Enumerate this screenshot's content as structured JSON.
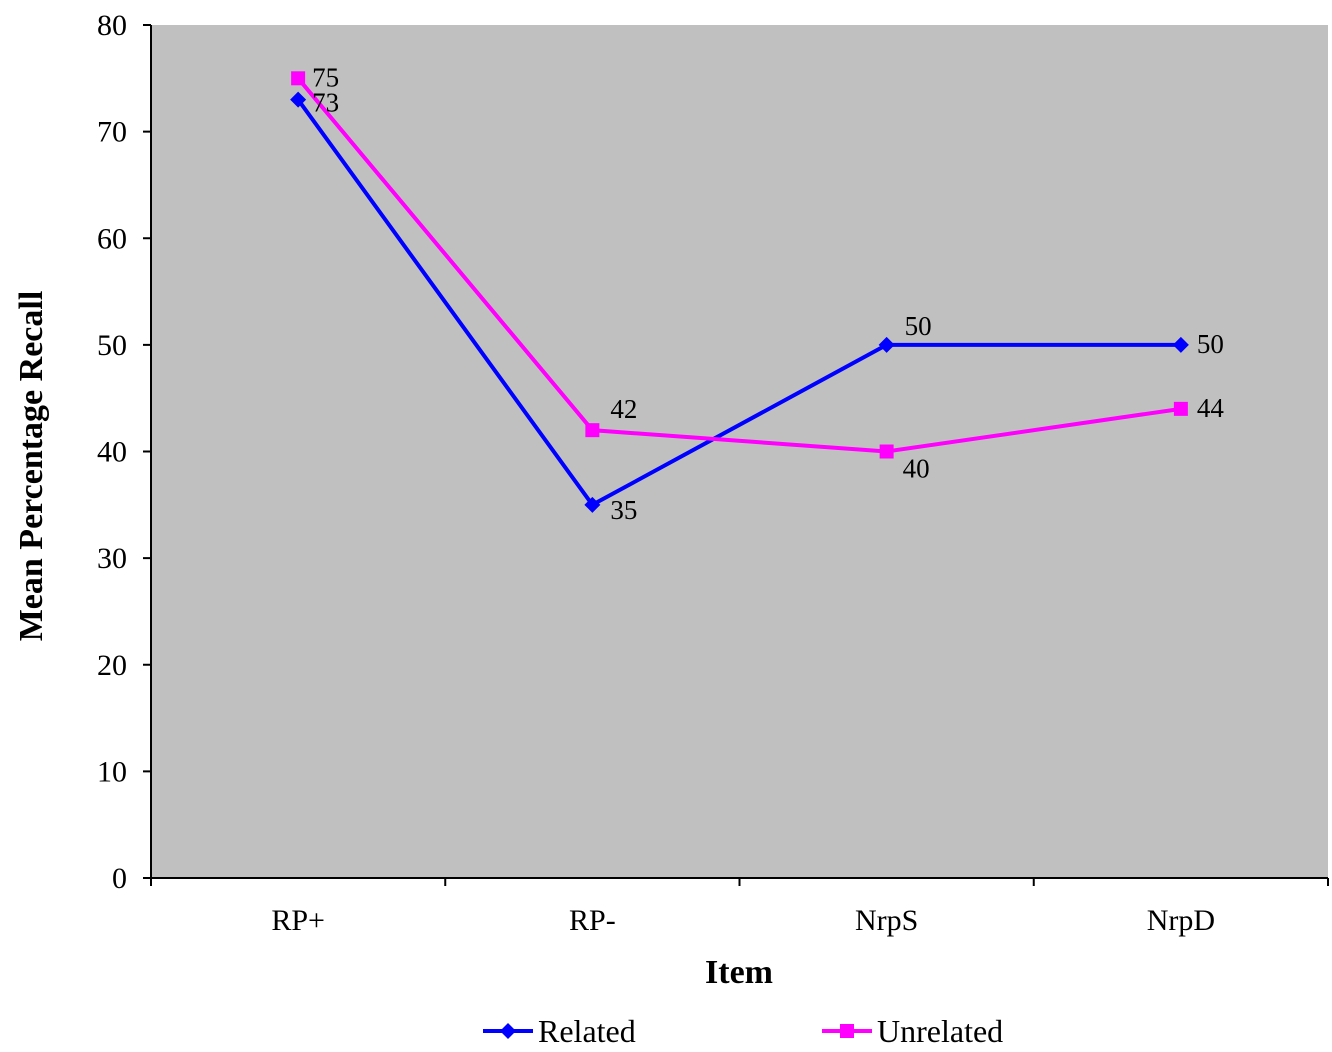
{
  "chart_data": {
    "type": "line",
    "categories": [
      "RP+",
      "RP-",
      "NrpS",
      "NrpD"
    ],
    "series": [
      {
        "name": "Related",
        "values": [
          73,
          35,
          50,
          50
        ],
        "color": "#0000FF",
        "marker": "diamond"
      },
      {
        "name": "Unrelated",
        "values": [
          75,
          42,
          40,
          44
        ],
        "color": "#FF00FF",
        "marker": "square"
      }
    ],
    "data_labels": {
      "Related": [
        "73",
        "35",
        "50",
        "50"
      ],
      "Unrelated": [
        "75",
        "42",
        "40",
        "44"
      ]
    },
    "title": "",
    "xlabel": "Item",
    "ylabel": "Mean Percentage Recall",
    "ylim": [
      0,
      80
    ],
    "yticks": [
      0,
      10,
      20,
      30,
      40,
      50,
      60,
      70,
      80
    ],
    "grid": false,
    "plot_background": "#C0C0C0",
    "legend_position": "bottom"
  }
}
